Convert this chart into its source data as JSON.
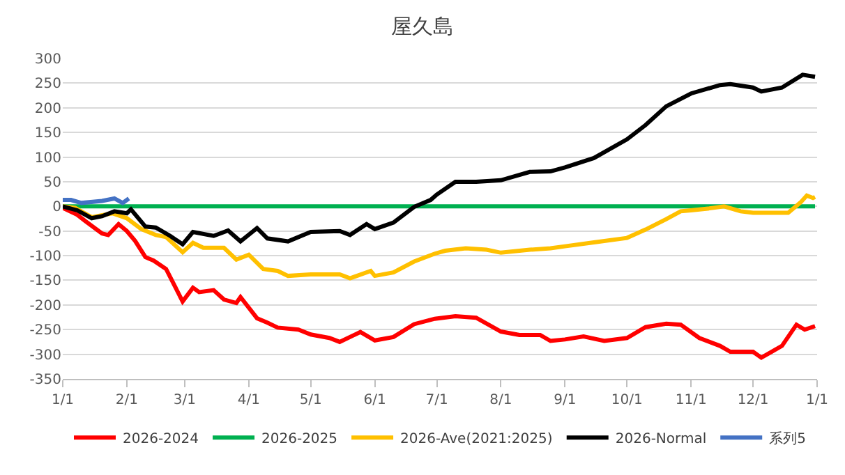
{
  "chart_data": {
    "type": "line",
    "title": "屋久島",
    "xlim": [
      "2026-01-01",
      "2027-01-01"
    ],
    "xticks": [
      {
        "value": "2026-01-01",
        "label": "1/1"
      },
      {
        "value": "2026-02-01",
        "label": "2/1"
      },
      {
        "value": "2026-03-01",
        "label": "3/1"
      },
      {
        "value": "2026-04-01",
        "label": "4/1"
      },
      {
        "value": "2026-05-01",
        "label": "5/1"
      },
      {
        "value": "2026-06-01",
        "label": "6/1"
      },
      {
        "value": "2026-07-01",
        "label": "7/1"
      },
      {
        "value": "2026-08-01",
        "label": "8/1"
      },
      {
        "value": "2026-09-01",
        "label": "9/1"
      },
      {
        "value": "2026-10-01",
        "label": "10/1"
      },
      {
        "value": "2026-11-01",
        "label": "11/1"
      },
      {
        "value": "2026-12-01",
        "label": "12/1"
      },
      {
        "value": "2027-01-01",
        "label": "1/1"
      }
    ],
    "ylim": [
      -350,
      300
    ],
    "yticks": [
      -350,
      -300,
      -250,
      -200,
      -150,
      -100,
      -50,
      0,
      50,
      100,
      150,
      200,
      250,
      300
    ],
    "grid": "y",
    "legend": "bottom",
    "marker": "none",
    "line_style": "solid",
    "series": [
      {
        "name": "2026-2024",
        "color": "#ff0000",
        "x": [
          "2026-01-01",
          "2026-01-08",
          "2026-01-12",
          "2026-01-20",
          "2026-01-23",
          "2026-01-28",
          "2026-02-01",
          "2026-02-05",
          "2026-02-10",
          "2026-02-14",
          "2026-02-20",
          "2026-02-28",
          "2026-03-05",
          "2026-03-08",
          "2026-03-15",
          "2026-03-20",
          "2026-03-26",
          "2026-03-28",
          "2026-04-05",
          "2026-04-10",
          "2026-04-15",
          "2026-04-25",
          "2026-05-01",
          "2026-05-10",
          "2026-05-15",
          "2026-05-25",
          "2026-06-01",
          "2026-06-10",
          "2026-06-20",
          "2026-06-30",
          "2026-07-10",
          "2026-07-20",
          "2026-08-01",
          "2026-08-10",
          "2026-08-20",
          "2026-08-25",
          "2026-09-01",
          "2026-09-10",
          "2026-09-20",
          "2026-10-01",
          "2026-10-10",
          "2026-10-20",
          "2026-10-27",
          "2026-11-05",
          "2026-11-15",
          "2026-11-20",
          "2026-12-01",
          "2026-12-05",
          "2026-12-15",
          "2026-12-22",
          "2026-12-26",
          "2026-12-31"
        ],
        "values": [
          -3,
          -17,
          -30,
          -55,
          -58,
          -36,
          -50,
          -70,
          -103,
          -110,
          -127,
          -193,
          -165,
          -174,
          -170,
          -189,
          -196,
          -184,
          -227,
          -236,
          -246,
          -250,
          -260,
          -267,
          -275,
          -255,
          -272,
          -265,
          -239,
          -228,
          -223,
          -226,
          -254,
          -261,
          -261,
          -273,
          -270,
          -264,
          -273,
          -267,
          -245,
          -238,
          -240,
          -267,
          -283,
          -295,
          -295,
          -307,
          -283,
          -240,
          -250,
          -243
        ]
      },
      {
        "name": "2026-2025",
        "color": "#00b050",
        "x": [
          "2026-01-01",
          "2026-12-31"
        ],
        "values": [
          0,
          0
        ]
      },
      {
        "name": "2026-Ave(2021:2025)",
        "color": "#ffc000",
        "x": [
          "2026-01-01",
          "2026-01-07",
          "2026-01-15",
          "2026-01-25",
          "2026-02-01",
          "2026-02-08",
          "2026-02-15",
          "2026-02-20",
          "2026-02-28",
          "2026-03-05",
          "2026-03-10",
          "2026-03-20",
          "2026-03-26",
          "2026-04-01",
          "2026-04-08",
          "2026-04-15",
          "2026-04-20",
          "2026-05-01",
          "2026-05-15",
          "2026-05-20",
          "2026-05-30",
          "2026-06-01",
          "2026-06-10",
          "2026-06-20",
          "2026-06-30",
          "2026-07-05",
          "2026-07-15",
          "2026-07-25",
          "2026-08-01",
          "2026-08-15",
          "2026-08-25",
          "2026-09-01",
          "2026-09-15",
          "2026-10-01",
          "2026-10-10",
          "2026-10-20",
          "2026-10-27",
          "2026-11-01",
          "2026-11-10",
          "2026-11-17",
          "2026-11-25",
          "2026-12-01",
          "2026-12-10",
          "2026-12-18",
          "2026-12-24",
          "2026-12-27",
          "2026-12-30",
          "2026-12-31"
        ],
        "values": [
          0,
          -3,
          -22,
          -14,
          -24,
          -46,
          -58,
          -62,
          -93,
          -74,
          -84,
          -84,
          -108,
          -98,
          -127,
          -131,
          -141,
          -138,
          -138,
          -146,
          -131,
          -141,
          -134,
          -112,
          -96,
          -90,
          -85,
          -88,
          -94,
          -88,
          -85,
          -81,
          -73,
          -64,
          -47,
          -26,
          -10,
          -8,
          -4,
          0,
          -10,
          -13,
          -13,
          -13,
          8,
          22,
          17,
          19
        ]
      },
      {
        "name": "2026-Normal",
        "color": "#000000",
        "x": [
          "2026-01-01",
          "2026-01-08",
          "2026-01-15",
          "2026-01-20",
          "2026-01-26",
          "2026-02-01",
          "2026-02-03",
          "2026-02-10",
          "2026-02-15",
          "2026-02-22",
          "2026-02-28",
          "2026-03-05",
          "2026-03-15",
          "2026-03-22",
          "2026-03-28",
          "2026-04-05",
          "2026-04-10",
          "2026-04-20",
          "2026-05-01",
          "2026-05-15",
          "2026-05-20",
          "2026-05-28",
          "2026-06-01",
          "2026-06-10",
          "2026-06-20",
          "2026-06-28",
          "2026-07-01",
          "2026-07-10",
          "2026-07-20",
          "2026-08-01",
          "2026-08-15",
          "2026-08-25",
          "2026-09-01",
          "2026-09-15",
          "2026-10-01",
          "2026-10-10",
          "2026-10-20",
          "2026-11-01",
          "2026-11-15",
          "2026-11-20",
          "2026-12-01",
          "2026-12-05",
          "2026-12-15",
          "2026-12-25",
          "2026-12-31"
        ],
        "values": [
          0,
          -8,
          -24,
          -20,
          -10,
          -14,
          -6,
          -41,
          -43,
          -60,
          -77,
          -52,
          -60,
          -49,
          -71,
          -44,
          -65,
          -71,
          -52,
          -50,
          -58,
          -36,
          -46,
          -33,
          -1,
          13,
          24,
          50,
          50,
          53,
          70,
          71,
          79,
          98,
          136,
          165,
          203,
          229,
          246,
          248,
          241,
          233,
          241,
          267,
          263
        ]
      },
      {
        "name": "系列5",
        "color": "#4472c4",
        "x": [
          "2026-01-01",
          "2026-01-05",
          "2026-01-10",
          "2026-01-20",
          "2026-01-26",
          "2026-01-30",
          "2026-02-02"
        ],
        "values": [
          13,
          13,
          7,
          11,
          16,
          7,
          16
        ]
      }
    ]
  }
}
